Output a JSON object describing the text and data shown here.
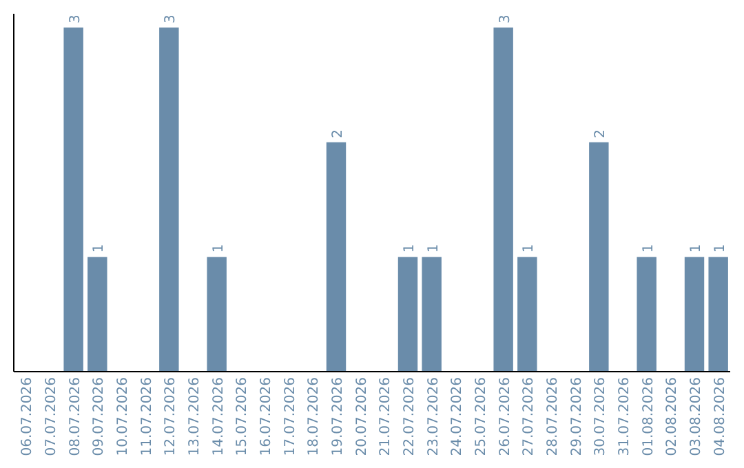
{
  "chart_data": {
    "type": "bar",
    "categories": [
      "06.07.2026",
      "07.07.2026",
      "08.07.2026",
      "09.07.2026",
      "10.07.2026",
      "11.07.2026",
      "12.07.2026",
      "13.07.2026",
      "14.07.2026",
      "15.07.2026",
      "16.07.2026",
      "17.07.2026",
      "18.07.2026",
      "19.07.2026",
      "20.07.2026",
      "21.07.2026",
      "22.07.2026",
      "23.07.2026",
      "24.07.2026",
      "25.07.2026",
      "26.07.2026",
      "27.07.2026",
      "28.07.2026",
      "29.07.2026",
      "30.07.2026",
      "31.07.2026",
      "01.08.2026",
      "02.08.2026",
      "03.08.2026",
      "04.08.2026"
    ],
    "values": [
      0,
      0,
      3,
      1,
      0,
      0,
      3,
      0,
      1,
      0,
      0,
      0,
      0,
      2,
      0,
      0,
      1,
      1,
      0,
      0,
      3,
      1,
      0,
      0,
      2,
      0,
      1,
      0,
      1,
      1
    ],
    "value_labels": [
      null,
      null,
      "3",
      "1",
      null,
      null,
      "3",
      null,
      "1",
      null,
      null,
      null,
      null,
      "2",
      null,
      null,
      "1",
      "1",
      null,
      null,
      "3",
      "1",
      null,
      null,
      "2",
      null,
      "1",
      null,
      "1",
      "1"
    ],
    "color": "#6a8caa",
    "tick_labels": "x"
  }
}
